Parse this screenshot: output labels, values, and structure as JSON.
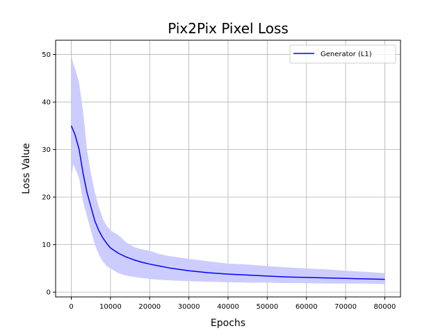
{
  "chart_data": {
    "type": "line",
    "title": "Pix2Pix Pixel Loss",
    "xlabel": "Epochs",
    "ylabel": "Loss Value",
    "xlim": [
      -4000,
      84000
    ],
    "ylim": [
      -1,
      53
    ],
    "xticks": [
      0,
      10000,
      20000,
      30000,
      40000,
      50000,
      60000,
      70000,
      80000
    ],
    "yticks": [
      0,
      10,
      20,
      30,
      40,
      50
    ],
    "grid": true,
    "legend_position": "top-right",
    "colors": {
      "line": "#0000ff",
      "band": "#ccccff",
      "grid": "#b0b0b0"
    },
    "series": [
      {
        "name": "Generator (L1)",
        "x": [
          0,
          500,
          1000,
          2000,
          3000,
          4000,
          5000,
          6000,
          7000,
          8000,
          9000,
          10000,
          12000,
          14000,
          16000,
          18000,
          20000,
          22500,
          25000,
          30000,
          35000,
          40000,
          45000,
          50000,
          55000,
          60000,
          65000,
          70000,
          75000,
          80000
        ],
        "y": [
          35,
          34,
          33,
          30,
          25,
          21,
          18,
          15,
          13,
          11.5,
          10.3,
          9.3,
          8.2,
          7.4,
          6.8,
          6.3,
          5.9,
          5.5,
          5.1,
          4.5,
          4.1,
          3.8,
          3.6,
          3.4,
          3.2,
          3.1,
          3.0,
          2.9,
          2.8,
          2.7
        ],
        "band_low": [
          24,
          27,
          26,
          24,
          19,
          16,
          13,
          10,
          8,
          6.5,
          5.5,
          5,
          4,
          3.5,
          3.2,
          3,
          2.8,
          2.6,
          2.5,
          2.3,
          2.2,
          2.1,
          2.0,
          2.0,
          1.9,
          1.9,
          1.8,
          1.8,
          1.8,
          1.7
        ],
        "band_high": [
          50,
          48,
          47,
          44,
          38,
          30,
          25,
          21,
          18,
          15.5,
          14,
          13,
          12,
          10.5,
          9.5,
          9,
          8.7,
          8,
          7.6,
          7,
          6.5,
          6,
          5.8,
          5.5,
          5.2,
          5,
          4.8,
          4.5,
          4.3,
          4.0
        ]
      }
    ]
  }
}
